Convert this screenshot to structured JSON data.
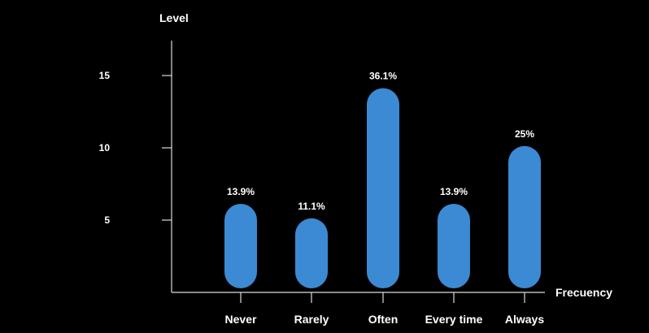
{
  "chart_data": {
    "type": "bar",
    "title": "",
    "ylabel": "Level",
    "xlabel": "Frecuency",
    "ylim": [
      0,
      17.5
    ],
    "yticks": [
      5,
      10,
      15
    ],
    "categories": [
      "Never",
      "Rarely",
      "Often",
      "Every time",
      "Always"
    ],
    "values": [
      5,
      4,
      13,
      5,
      9
    ],
    "data_labels": [
      "13.9%",
      "11.1%",
      "36.1%",
      "13.9%",
      "25%"
    ],
    "bar_color": "#3b8ad3",
    "background": "#000000",
    "axis_color": "#dcdcdc",
    "grid": false,
    "legend": "none"
  }
}
